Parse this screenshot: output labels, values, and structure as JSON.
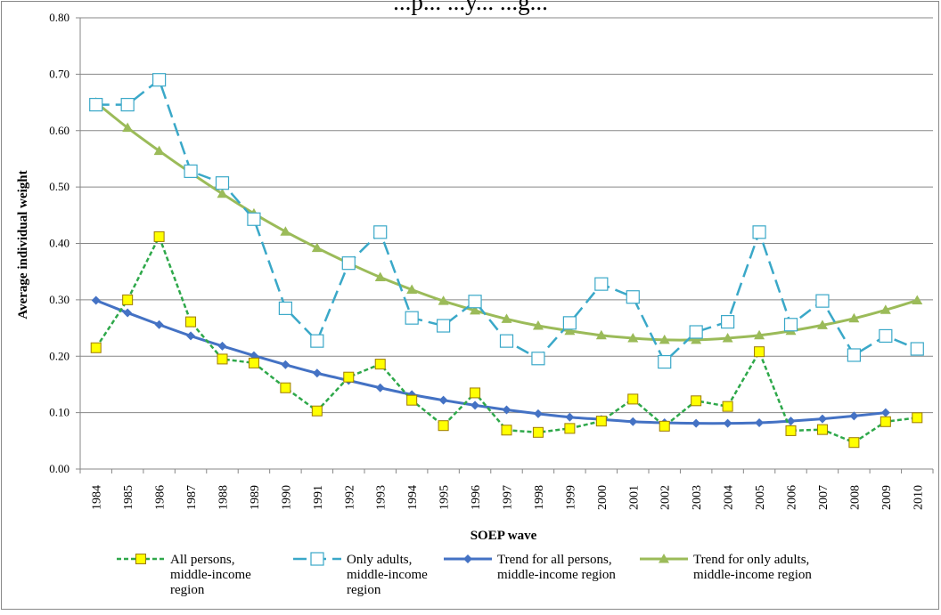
{
  "chart_data": {
    "type": "line",
    "title_partial": "...p... ...y... ...g...",
    "xlabel": "SOEP wave",
    "ylabel": "Average individual weight",
    "categories": [
      "1984",
      "1985",
      "1986",
      "1987",
      "1988",
      "1989",
      "1990",
      "1991",
      "1992",
      "1993",
      "1994",
      "1995",
      "1996",
      "1997",
      "1998",
      "1999",
      "2000",
      "2001",
      "2002",
      "2003",
      "2004",
      "2005",
      "2006",
      "2007",
      "2008",
      "2009",
      "2010"
    ],
    "ylim": [
      0,
      0.8
    ],
    "yticks": [
      "0.00",
      "0.10",
      "0.20",
      "0.30",
      "0.40",
      "0.50",
      "0.60",
      "0.70",
      "0.80"
    ],
    "grid": true,
    "legend_position": "bottom",
    "series": [
      {
        "name": "All persons, middle-income region",
        "name_lines": [
          "All persons,",
          "middle-income",
          "region"
        ],
        "color": "#2ea84a",
        "marker": "square-filled",
        "marker_fill": "#ffff00",
        "marker_stroke": "#9c7a00",
        "line": "dotted",
        "values": [
          0.215,
          0.3,
          0.412,
          0.261,
          0.195,
          0.188,
          0.144,
          0.103,
          0.163,
          0.186,
          0.122,
          0.077,
          0.135,
          0.069,
          0.065,
          0.072,
          0.085,
          0.124,
          0.076,
          0.121,
          0.111,
          0.208,
          0.068,
          0.07,
          0.047,
          0.084,
          0.091
        ]
      },
      {
        "name": "Only adults, middle-income region",
        "name_lines": [
          "Only adults,",
          "middle-income",
          "region"
        ],
        "color": "#3aa8c8",
        "marker": "square-open",
        "marker_fill": "#ffffff",
        "marker_stroke": "#3aa8c8",
        "line": "dashed",
        "values": [
          0.646,
          0.646,
          0.69,
          0.528,
          0.507,
          0.443,
          0.285,
          0.227,
          0.365,
          0.42,
          0.268,
          0.254,
          0.297,
          0.227,
          0.196,
          0.259,
          0.328,
          0.305,
          0.19,
          0.243,
          0.261,
          0.42,
          0.256,
          0.298,
          0.202,
          0.236,
          0.213
        ]
      },
      {
        "name": "Trend for all persons, middle-income region",
        "name_lines": [
          "Trend for all persons,",
          "middle-income region"
        ],
        "color": "#4472c4",
        "marker": "diamond",
        "line": "solid",
        "values": [
          0.299,
          0.277,
          0.256,
          0.236,
          0.218,
          0.201,
          0.185,
          0.17,
          0.157,
          0.144,
          0.132,
          0.122,
          0.113,
          0.105,
          0.098,
          0.092,
          0.088,
          0.084,
          0.082,
          0.081,
          0.081,
          0.082,
          0.085,
          0.089,
          0.094,
          0.1,
          null
        ]
      },
      {
        "name": "Trend for only adults, middle-income region",
        "name_lines": [
          "Trend for only adults,",
          "middle-income region"
        ],
        "color": "#9bbb59",
        "marker": "triangle",
        "line": "solid",
        "values": [
          0.65,
          0.605,
          0.564,
          0.525,
          0.488,
          0.453,
          0.421,
          0.392,
          0.365,
          0.34,
          0.318,
          0.298,
          0.281,
          0.266,
          0.254,
          0.245,
          0.237,
          0.232,
          0.229,
          0.229,
          0.232,
          0.237,
          0.245,
          0.255,
          0.267,
          0.282,
          0.299
        ]
      }
    ]
  }
}
